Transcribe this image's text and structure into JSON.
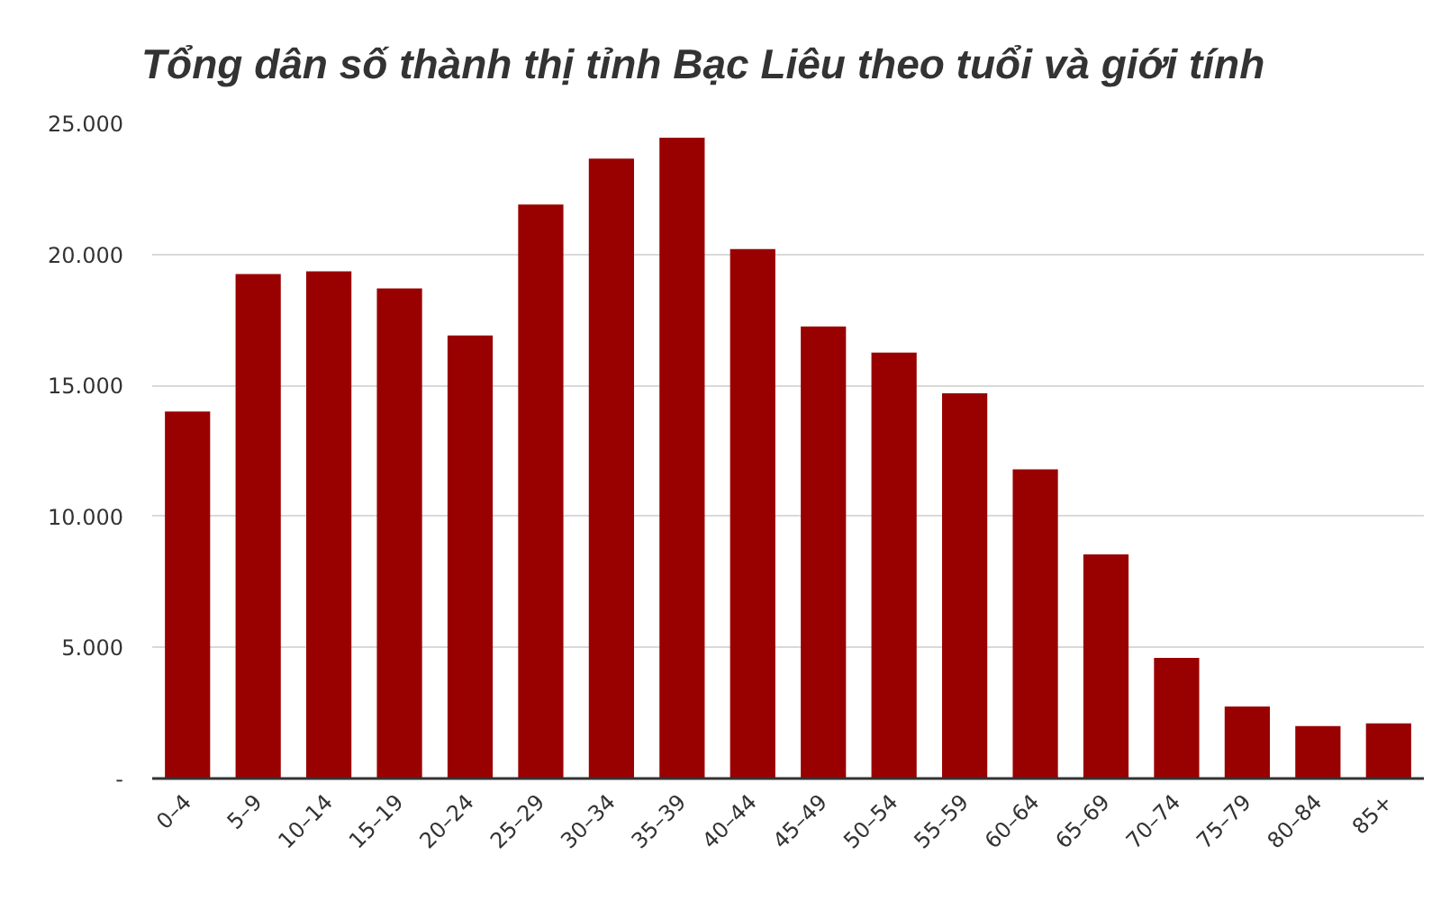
{
  "chart_data": {
    "type": "bar",
    "title": "Tổng dân số thành thị tỉnh Bạc Liêu theo tuổi và giới tính",
    "categories": [
      "0–4",
      "5–9",
      "10–14",
      "15–19",
      "20–24",
      "25–29",
      "30–34",
      "35–39",
      "40–44",
      "45–49",
      "50–54",
      "55–59",
      "60–64",
      "65–69",
      "70–74",
      "75–79",
      "80–84",
      "85+"
    ],
    "values": [
      14000,
      19250,
      19350,
      18700,
      16900,
      21900,
      23650,
      24450,
      20200,
      17250,
      16250,
      14700,
      11800,
      8550,
      4600,
      2750,
      2000,
      2100
    ],
    "color": "#990000",
    "ylim": [
      0,
      25000
    ],
    "yticks": [
      {
        "value": 0,
        "label": "-"
      },
      {
        "value": 5000,
        "label": "5.000"
      },
      {
        "value": 10000,
        "label": "10.000"
      },
      {
        "value": 15000,
        "label": "15.000"
      },
      {
        "value": 20000,
        "label": "20.000"
      },
      {
        "value": 25000,
        "label": "25.000"
      }
    ],
    "grid": "y"
  }
}
